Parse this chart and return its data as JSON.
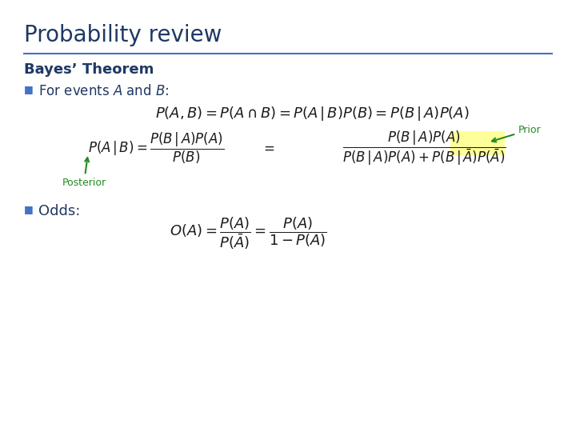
{
  "title": "Probability review",
  "title_color": "#1F3864",
  "title_fontsize": 20,
  "separator_color": "#4472C4",
  "bg_color": "#ffffff",
  "section1_header": "Bayes’ Theorem",
  "section1_header_color": "#1F3864",
  "section1_header_fontsize": 13,
  "bullet_color": "#4472C4",
  "for_events_text": "For events $\\mathit{A}$ and $\\mathit{B}$:",
  "for_events_color": "#1F3864",
  "formula1": "$P(A,B)=P(A\\cap B)=P(A\\,|\\,B)P(B)=P(B\\,|\\,A)P(A)$",
  "formula2_lhs": "$P(A\\,|\\,B)=\\dfrac{P(B\\,|\\,A)P(A)}{P(B)}$",
  "formula2_rhs": "$\\dfrac{P(B\\,|\\,A)P(A)}{P(B\\,|\\,A)P(A)+P(B\\,|\\,\\bar{A})P(\\bar{A})}$",
  "prior_label": "Prior",
  "prior_color": "#228B22",
  "prior_highlight_color": "#FFFF99",
  "posterior_label": "Posterior",
  "posterior_color": "#228B22",
  "odds_text": "Odds:",
  "odds_color": "#1F3864",
  "formula3": "$O(A)=\\dfrac{P(A)}{P(\\bar{A})}=\\dfrac{P(A)}{1-P(A)}$",
  "formula_color": "#1a1a1a",
  "arrow_color": "#228B22",
  "for_events_fontsize": 12,
  "formula1_fontsize": 13,
  "formula2_fontsize": 12,
  "formula3_fontsize": 13,
  "odds_fontsize": 13
}
